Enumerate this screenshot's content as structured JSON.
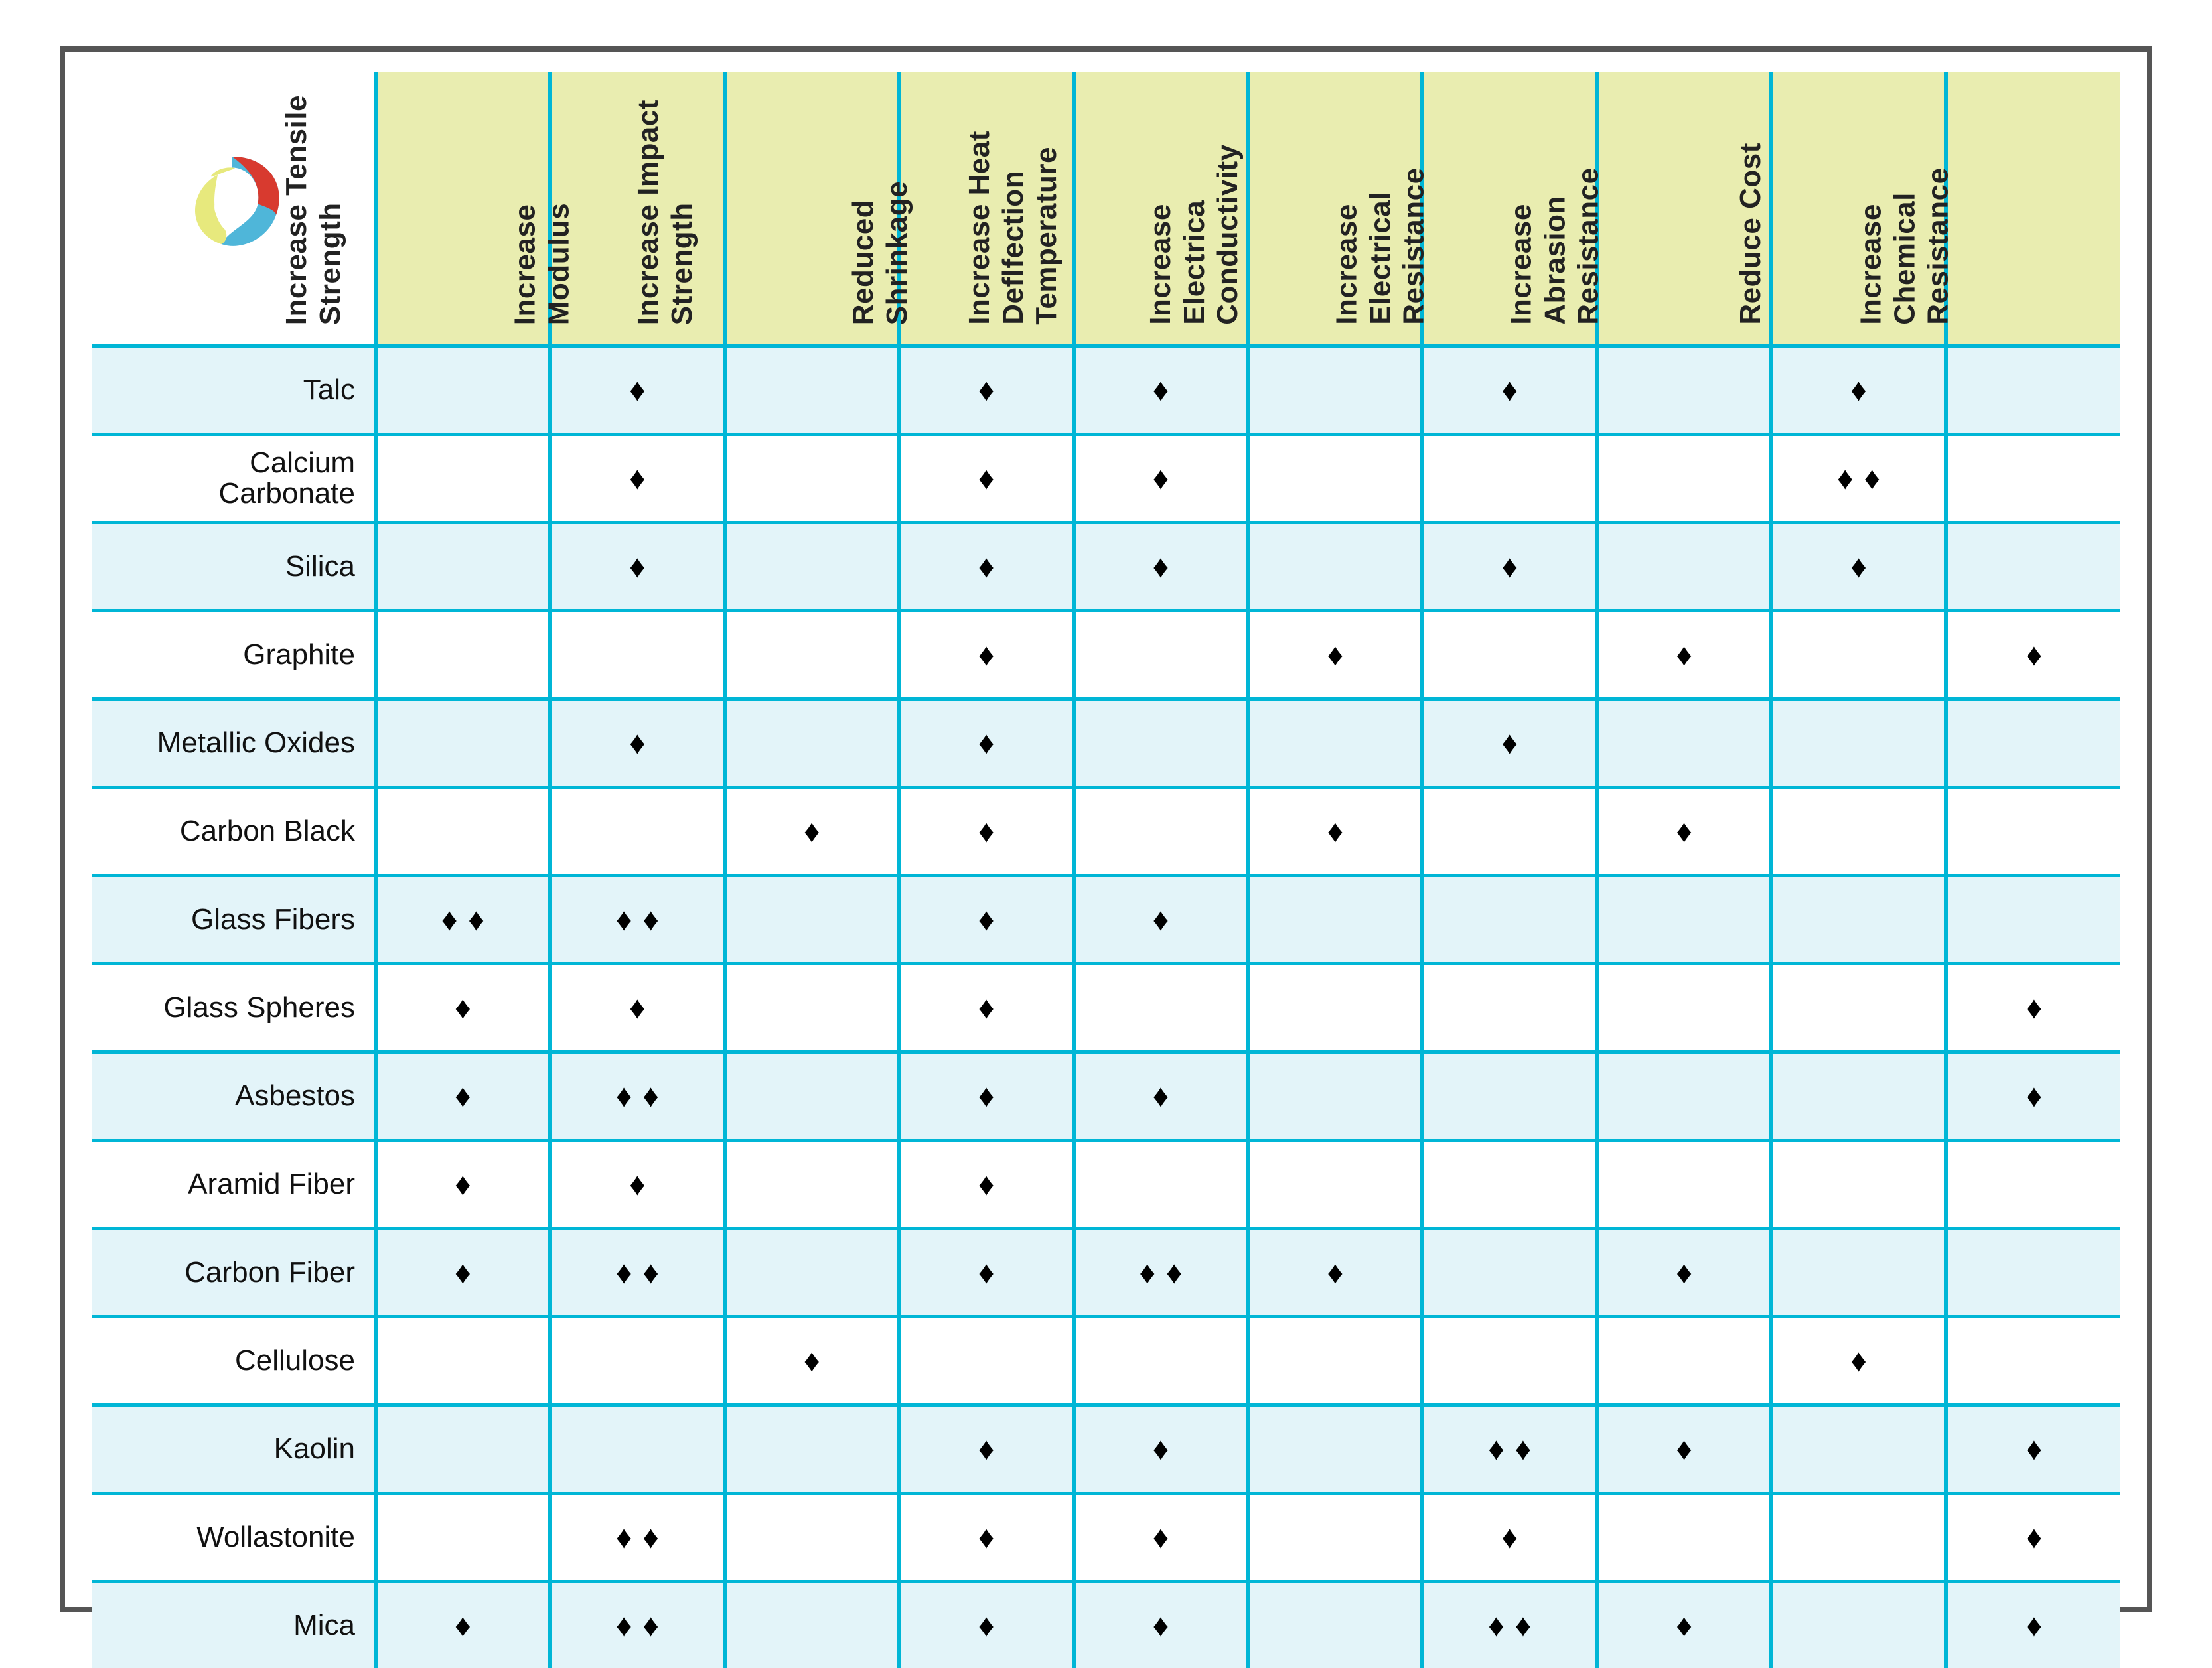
{
  "type": "table",
  "description": "Filler/reinforcement additives vs. property effects matrix",
  "glyph": "♦",
  "colors": {
    "border_cyan": "#00b6d6",
    "header_bg": "#e9edb0",
    "row_odd_bg": "#e3f4f9",
    "row_even_bg": "#ffffff",
    "outer_frame": "#555555",
    "diamond": "#000000",
    "text": "#111111",
    "logo_blue": "#4fb6d9",
    "logo_red": "#d83a2f",
    "logo_yellow": "#e7e97d"
  },
  "typography": {
    "header_fontsize_pt": 33,
    "row_label_fontsize_pt": 33,
    "font_family": "Helvetica Neue / Arial"
  },
  "columns": [
    {
      "key": "tensile",
      "lines": [
        "Increase Tensile",
        "Strength"
      ]
    },
    {
      "key": "modulus",
      "lines": [
        "Increase",
        "Modulus"
      ]
    },
    {
      "key": "impact",
      "lines": [
        "Increase Impact",
        "Strength"
      ]
    },
    {
      "key": "shrink",
      "lines": [
        "Reduced",
        "Shrinkage"
      ]
    },
    {
      "key": "hdt",
      "lines": [
        "Increase Heat",
        "Deflfection",
        "Temperature"
      ]
    },
    {
      "key": "econd",
      "lines": [
        "Increase",
        "Electrica",
        "Conductivity"
      ]
    },
    {
      "key": "eres",
      "lines": [
        "Increase",
        "Electrical",
        "Resistance"
      ]
    },
    {
      "key": "abr",
      "lines": [
        "Increase",
        "Abrasion",
        "Resistance"
      ]
    },
    {
      "key": "cost",
      "lines": [
        "Reduce Cost"
      ]
    },
    {
      "key": "chem",
      "lines": [
        "Increase",
        "Chemical",
        "Resistance"
      ]
    }
  ],
  "rows": [
    {
      "label": "Talc",
      "vals": {
        "modulus": 1,
        "shrink": 1,
        "hdt": 1,
        "eres": 1,
        "cost": 1
      }
    },
    {
      "label": "Calcium\nCarbonate",
      "vals": {
        "modulus": 1,
        "shrink": 1,
        "hdt": 1,
        "cost": 2
      }
    },
    {
      "label": "Silica",
      "vals": {
        "modulus": 1,
        "shrink": 1,
        "hdt": 1,
        "eres": 1,
        "cost": 1
      }
    },
    {
      "label": "Graphite",
      "vals": {
        "shrink": 1,
        "econd": 1,
        "abr": 1,
        "chem": 1
      }
    },
    {
      "label": "Metallic Oxides",
      "vals": {
        "modulus": 1,
        "shrink": 1,
        "eres": 1
      }
    },
    {
      "label": "Carbon Black",
      "vals": {
        "impact": 1,
        "shrink": 1,
        "econd": 1,
        "abr": 1
      }
    },
    {
      "label": "Glass Fibers",
      "vals": {
        "tensile": 2,
        "modulus": 2,
        "shrink": 1,
        "hdt": 1
      }
    },
    {
      "label": "Glass Spheres",
      "vals": {
        "tensile": 1,
        "modulus": 1,
        "shrink": 1,
        "chem": 1
      }
    },
    {
      "label": "Asbestos",
      "vals": {
        "tensile": 1,
        "modulus": 2,
        "shrink": 1,
        "hdt": 1,
        "chem": 1
      }
    },
    {
      "label": "Aramid Fiber",
      "vals": {
        "tensile": 1,
        "modulus": 1,
        "shrink": 1
      }
    },
    {
      "label": "Carbon Fiber",
      "vals": {
        "tensile": 1,
        "modulus": 2,
        "shrink": 1,
        "hdt": 2,
        "econd": 1,
        "abr": 1
      }
    },
    {
      "label": "Cellulose",
      "vals": {
        "impact": 1,
        "cost": 1
      }
    },
    {
      "label": "Kaolin",
      "vals": {
        "shrink": 1,
        "hdt": 1,
        "eres": 2,
        "abr": 1,
        "chem": 1
      }
    },
    {
      "label": "Wollastonite",
      "vals": {
        "modulus": 2,
        "shrink": 1,
        "hdt": 1,
        "eres": 1,
        "chem": 1
      }
    },
    {
      "label": "Mica",
      "vals": {
        "tensile": 1,
        "modulus": 2,
        "shrink": 1,
        "hdt": 1,
        "eres": 2,
        "abr": 1,
        "chem": 1
      }
    }
  ]
}
